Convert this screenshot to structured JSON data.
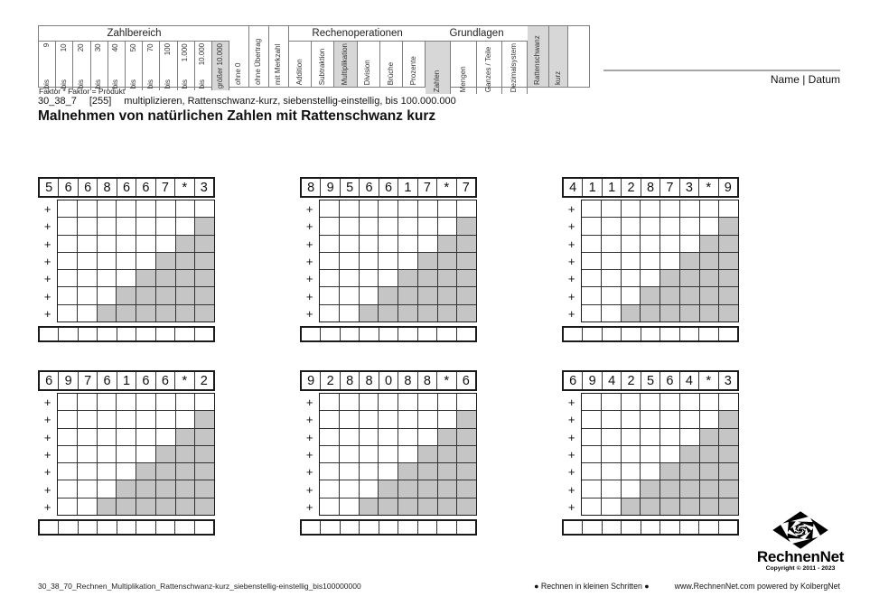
{
  "criteria_table": {
    "groups": [
      {
        "name": "Zahlbereich",
        "type": "plain",
        "columns": [
          {
            "prefix": "bis",
            "value": "9"
          },
          {
            "prefix": "bis",
            "value": "10"
          },
          {
            "prefix": "bis",
            "value": "20"
          },
          {
            "prefix": "bis",
            "value": "30"
          },
          {
            "prefix": "bis",
            "value": "40"
          },
          {
            "prefix": "bis",
            "value": "50"
          },
          {
            "prefix": "bis",
            "value": "70"
          },
          {
            "prefix": "bis",
            "value": "100"
          },
          {
            "prefix": "bis",
            "value": "1.000"
          },
          {
            "prefix": "bis",
            "value": "10.000"
          },
          {
            "phrase": "größer 10.000",
            "highlight": true
          }
        ]
      },
      {
        "name": "",
        "type": "tall",
        "columns": [
          {
            "phrase": "ohne 0"
          },
          {
            "phrase": "ohne Übertrag"
          },
          {
            "phrase": "mit Merkzahl"
          }
        ]
      },
      {
        "name": "Rechenoperationen",
        "type": "plain",
        "columns": [
          {
            "phrase": "Addition"
          },
          {
            "phrase": "Subtraktion"
          },
          {
            "phrase": "Multiplikation",
            "highlight": true
          },
          {
            "phrase": "Division"
          },
          {
            "phrase": "Brüche"
          },
          {
            "phrase": "Prozente"
          }
        ]
      },
      {
        "name": "Grundlagen",
        "type": "plain",
        "columns": [
          {
            "phrase": "Zahlen",
            "highlight": true
          },
          {
            "phrase": "Mengen"
          },
          {
            "phrase": "Ganzes / Teile"
          },
          {
            "phrase": "Dezimalsystem"
          }
        ]
      },
      {
        "name": "",
        "type": "tall",
        "columns": [
          {
            "phrase": "Rattenschwanz",
            "highlight": true
          },
          {
            "phrase": "kurz",
            "highlight": true
          }
        ]
      }
    ]
  },
  "meta": {
    "formula_note": "Faktor * Faktor = Produkt",
    "code": "30_38_7",
    "ref": "[255]",
    "description": "multiplizieren, Rattenschwanz-kurz, siebenstellig-einstellig, bis 100.000.000",
    "title": "Malnehmen von natürlichen Zahlen mit Rattenschwanz kurz",
    "name_date": "Name | Datum"
  },
  "grid_spec": {
    "plus_symbol": "+",
    "plus_rows": 7,
    "data_columns": 8,
    "gray_steps": [
      0,
      1,
      2,
      3,
      4,
      5,
      6
    ],
    "result_columns": 9
  },
  "problems": [
    {
      "cells": [
        "5",
        "6",
        "6",
        "8",
        "6",
        "6",
        "7",
        "*",
        "3"
      ]
    },
    {
      "cells": [
        "8",
        "9",
        "5",
        "6",
        "6",
        "1",
        "7",
        "*",
        "7"
      ]
    },
    {
      "cells": [
        "4",
        "1",
        "1",
        "2",
        "8",
        "7",
        "3",
        "*",
        "9"
      ]
    },
    {
      "cells": [
        "6",
        "9",
        "7",
        "6",
        "1",
        "6",
        "6",
        "*",
        "2"
      ]
    },
    {
      "cells": [
        "9",
        "2",
        "8",
        "8",
        "0",
        "8",
        "8",
        "*",
        "6"
      ]
    },
    {
      "cells": [
        "6",
        "9",
        "4",
        "2",
        "5",
        "6",
        "4",
        "*",
        "3"
      ]
    }
  ],
  "footer": {
    "filename": "30_38_70_Rechnen_Multiplikation_Rattenschwanz-kurz_siebenstellig-einstellig_bis100000000",
    "slogan": "● Rechnen in kleinen Schritten ●",
    "website": "www.RechnenNet.com powered by KolbergNet"
  },
  "logo": {
    "name": "RechnenNet",
    "copyright": "Copyright © 2011 - 2023"
  },
  "colors": {
    "highlight_gray": "#d7d7d7",
    "step_gray": "#c5c5c5",
    "grid_border": "#1a1a1a",
    "table_border": "#7d7d7d",
    "rule_gray": "#a6a6a6"
  }
}
